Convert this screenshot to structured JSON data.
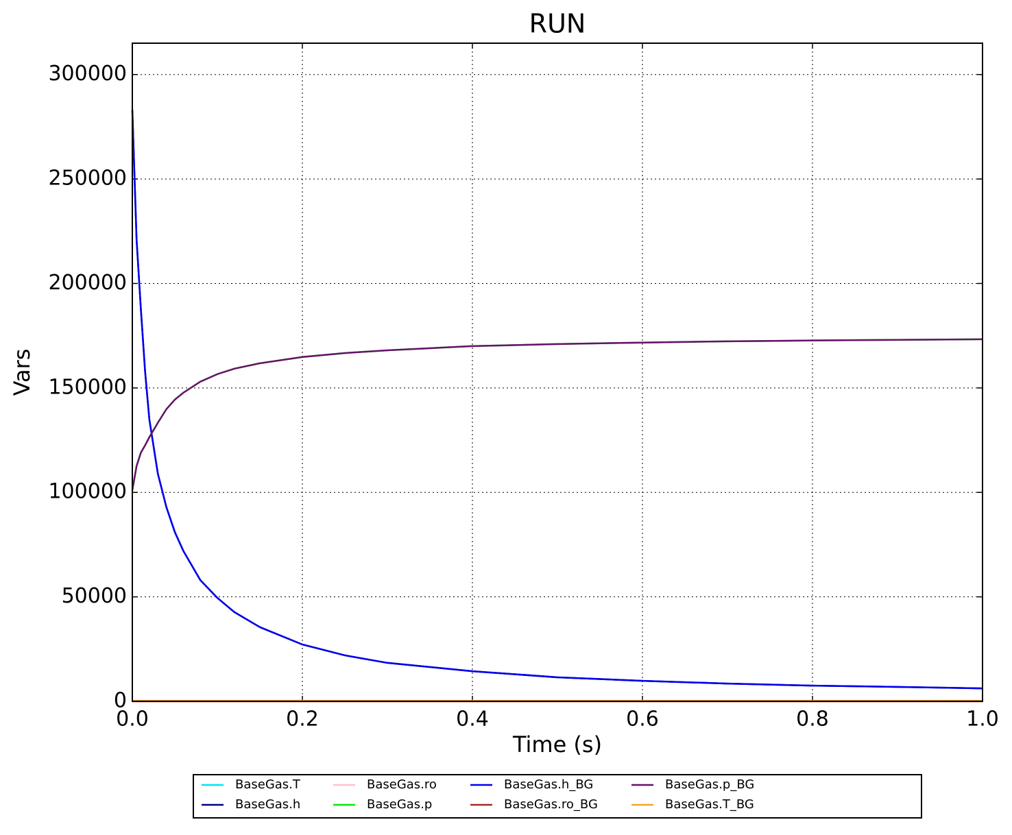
{
  "chart_data": {
    "type": "line",
    "title": "RUN",
    "x_label": "Time (s)",
    "y_label": "Vars",
    "x": [
      0,
      0.005,
      0.01,
      0.015,
      0.02,
      0.03,
      0.04,
      0.05,
      0.06,
      0.08,
      0.1,
      0.12,
      0.15,
      0.2,
      0.25,
      0.3,
      0.4,
      0.5,
      0.6,
      0.7,
      0.8,
      0.9,
      1.0
    ],
    "series": [
      {
        "name": "BaseGas.T",
        "color": "#00e5ee",
        "values": [
          300,
          300,
          300,
          300,
          300,
          300,
          300,
          300,
          300,
          300,
          300,
          300,
          300,
          300,
          300,
          300,
          300,
          300,
          300,
          300,
          300,
          300,
          300
        ]
      },
      {
        "name": "BaseGas.h",
        "color": "#000080",
        "values": [
          283000,
          221000,
          188000,
          158000,
          135000,
          109000,
          93000,
          81000,
          72000,
          58000,
          49500,
          42700,
          35500,
          27200,
          22000,
          18400,
          14400,
          11500,
          9800,
          8500,
          7500,
          6900,
          6200
        ]
      },
      {
        "name": "BaseGas.ro",
        "color": "#ffc0cb",
        "values": [
          1.2,
          1.2,
          1.2,
          1.2,
          1.2,
          1.2,
          1.2,
          1.2,
          1.2,
          1.2,
          1.2,
          1.2,
          1.2,
          1.2,
          1.2,
          1.2,
          1.2,
          1.2,
          1.2,
          1.2,
          1.2,
          1.2,
          1.2
        ]
      },
      {
        "name": "BaseGas.p",
        "color": "#00ee00",
        "values": [
          101000,
          112600,
          119000,
          122500,
          126400,
          133300,
          139800,
          144400,
          147700,
          153000,
          156600,
          159200,
          161800,
          164800,
          166700,
          168000,
          170000,
          171000,
          171700,
          172300,
          172700,
          173000,
          173300
        ]
      },
      {
        "name": "BaseGas.h_BG",
        "color": "#0000ee",
        "values": [
          283000,
          221000,
          188000,
          158000,
          135000,
          109000,
          93000,
          81000,
          72000,
          58000,
          49500,
          42700,
          35500,
          27200,
          22000,
          18400,
          14400,
          11500,
          9800,
          8500,
          7500,
          6900,
          6200
        ]
      },
      {
        "name": "BaseGas.ro_BG",
        "color": "#a52a2a",
        "values": [
          1.2,
          1.2,
          1.2,
          1.2,
          1.2,
          1.2,
          1.2,
          1.2,
          1.2,
          1.2,
          1.2,
          1.2,
          1.2,
          1.2,
          1.2,
          1.2,
          1.2,
          1.2,
          1.2,
          1.2,
          1.2,
          1.2,
          1.2
        ]
      },
      {
        "name": "BaseGas.p_BG",
        "color": "#68116b",
        "values": [
          101000,
          112600,
          119000,
          122500,
          126400,
          133300,
          139800,
          144400,
          147700,
          153000,
          156600,
          159200,
          161800,
          164800,
          166700,
          168000,
          170000,
          171000,
          171700,
          172300,
          172700,
          173000,
          173300
        ]
      },
      {
        "name": "BaseGas.T_BG",
        "color": "#f5a623",
        "values": [
          300,
          300,
          300,
          300,
          300,
          300,
          300,
          300,
          300,
          300,
          300,
          300,
          300,
          300,
          300,
          300,
          300,
          300,
          300,
          300,
          300,
          300,
          300
        ]
      }
    ],
    "xlim": [
      0,
      1.0
    ],
    "ylim": [
      0,
      315000
    ],
    "xticks": [
      {
        "value": 0,
        "label": "0.0"
      },
      0.2,
      0.4,
      0.6,
      0.8,
      {
        "value": 1.0,
        "label": "1.0"
      }
    ],
    "yticks": [
      0,
      50000,
      100000,
      150000,
      200000,
      250000,
      300000
    ],
    "grid": true,
    "legend": "bottom"
  }
}
